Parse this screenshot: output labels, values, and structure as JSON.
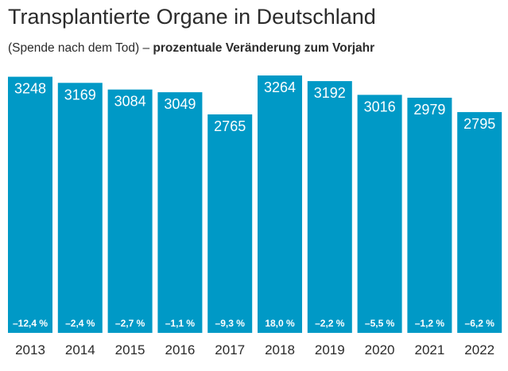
{
  "chart_data": {
    "type": "bar",
    "title": "Transplantierte Organe in Deutschland",
    "subtitle_plain": "(Spende nach dem Tod) –",
    "subtitle_bold": "prozentuale Veränderung zum Vorjahr",
    "categories": [
      "2013",
      "2014",
      "2015",
      "2016",
      "2017",
      "2018",
      "2019",
      "2020",
      "2021",
      "2022"
    ],
    "values": [
      3248,
      3169,
      3084,
      3049,
      2765,
      3264,
      3192,
      3016,
      2979,
      2795
    ],
    "value_labels": [
      "3248",
      "3169",
      "3084",
      "3049",
      "2765",
      "3264",
      "3192",
      "3016",
      "2979",
      "2795"
    ],
    "changes": [
      "–12,4 %",
      "–2,4 %",
      "–2,7 %",
      "–1,1 %",
      "–9,3 %",
      "18,0 %",
      "–2,2 %",
      "–5,5 %",
      "–1,2 %",
      "–6,2 %"
    ],
    "bar_color": "#0099c6",
    "grid": false,
    "legend": "none"
  }
}
